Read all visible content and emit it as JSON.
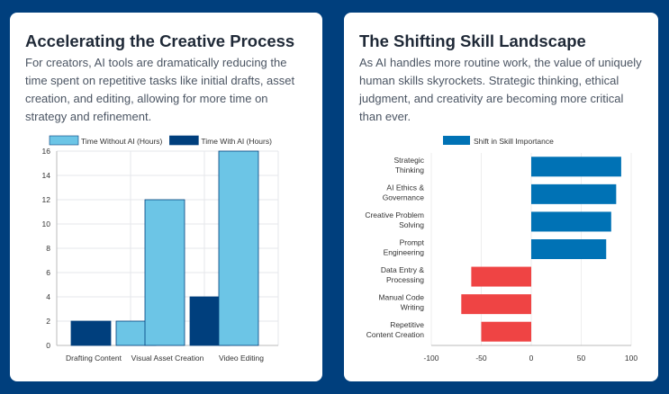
{
  "cards": [
    {
      "title": "Accelerating the Creative Process",
      "description": "For creators, AI tools are dramatically reducing the time spent on repetitive tasks like initial drafts, asset creation, and editing, allowing for more time on strategy and refinement."
    },
    {
      "title": "The Shifting Skill Landscape",
      "description": "As AI handles more routine work, the value of uniquely human skills skyrockets. Strategic thinking, ethical judgment, and creativity are becoming more critical than ever."
    }
  ],
  "colors": {
    "background": "#003f7d",
    "series_light": "#6cc5e6",
    "series_dark": "#003f7d",
    "positive": "#0072b5",
    "negative": "#ef4444"
  },
  "chart_data": [
    {
      "type": "bar",
      "categories": [
        "Drafting Content",
        "Visual Asset Creation",
        "Video Editing"
      ],
      "series": [
        {
          "name": "Time Without AI (Hours)",
          "values": [
            2,
            12,
            16
          ]
        },
        {
          "name": "Time With AI (Hours)",
          "values": [
            2,
            4,
            0
          ]
        }
      ],
      "ylim": [
        0,
        16
      ],
      "yticks": [
        "0",
        "2",
        "4",
        "6",
        "8",
        "10",
        "12",
        "14",
        "16"
      ],
      "legend": "top",
      "grid": true
    },
    {
      "type": "bar",
      "orientation": "horizontal",
      "categories": [
        [
          "Strategic",
          "Thinking"
        ],
        [
          "AI Ethics &",
          "Governance"
        ],
        [
          "Creative Problem",
          "Solving"
        ],
        [
          "Prompt",
          "Engineering"
        ],
        [
          "Data Entry &",
          "Processing"
        ],
        [
          "Manual Code",
          "Writing"
        ],
        [
          "Repetitive",
          "Content Creation"
        ]
      ],
      "series": [
        {
          "name": "Shift in Skill Importance",
          "values": [
            90,
            85,
            80,
            75,
            -60,
            -70,
            -50
          ]
        }
      ],
      "xlim": [
        -100,
        100
      ],
      "xticks": [
        "-100",
        "-50",
        "0",
        "50",
        "100"
      ],
      "legend": "top",
      "grid": false
    }
  ]
}
